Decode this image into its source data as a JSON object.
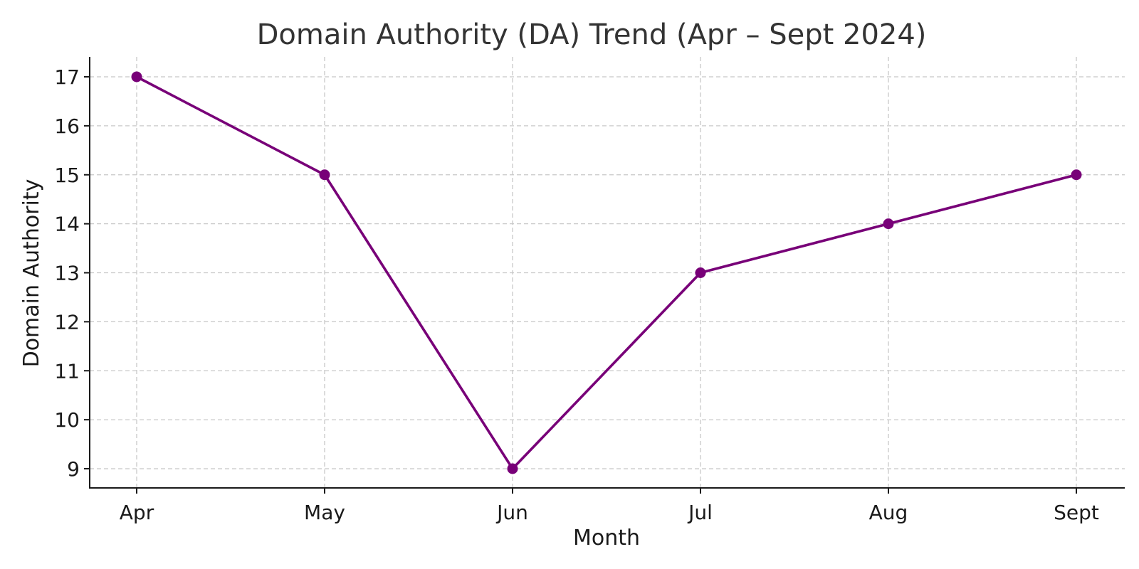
{
  "chart_data": {
    "type": "line",
    "title": "Domain Authority (DA) Trend (Apr – Sept 2024)",
    "xlabel": "Month",
    "ylabel": "Domain Authority",
    "categories": [
      "Apr",
      "May",
      "Jun",
      "Jul",
      "Aug",
      "Sept"
    ],
    "series": [
      {
        "values": [
          17,
          15,
          9,
          13,
          14,
          15
        ],
        "color": "#780078",
        "marker": "circle"
      }
    ],
    "yticks": [
      9,
      10,
      11,
      12,
      13,
      14,
      15,
      16,
      17
    ],
    "ylim": [
      8.6,
      17.4
    ],
    "grid": true,
    "legend": "none"
  }
}
